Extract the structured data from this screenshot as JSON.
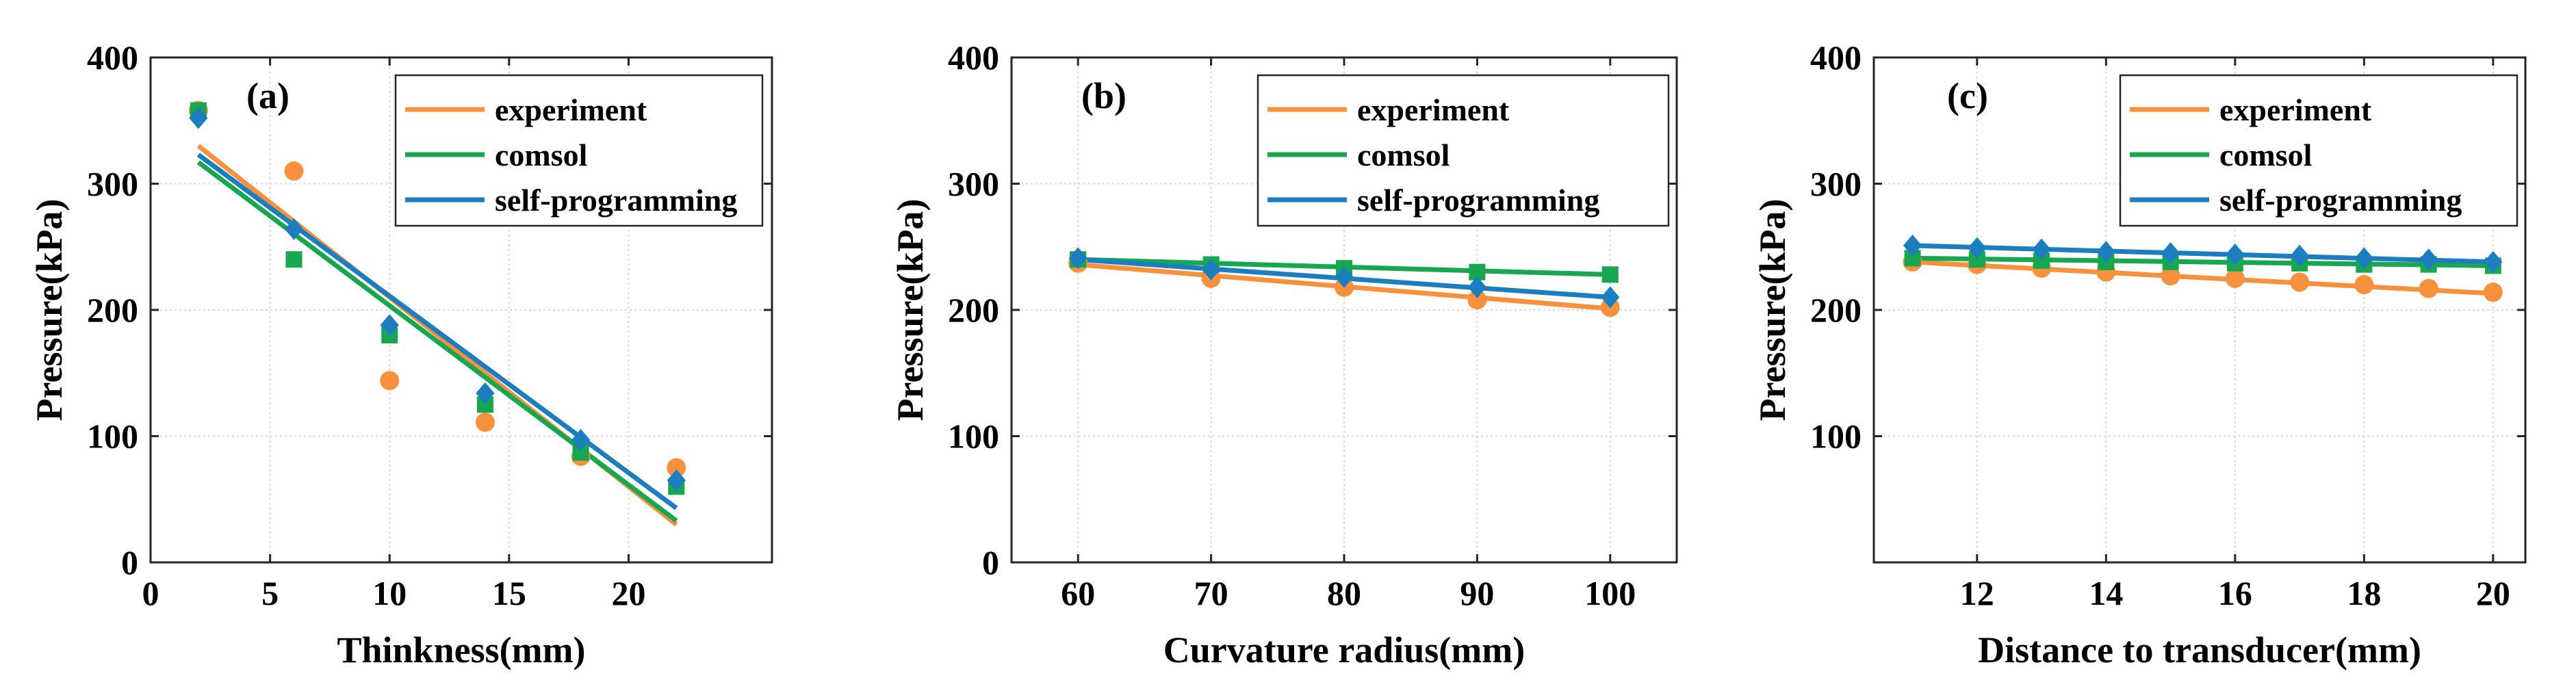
{
  "chart_data": [
    {
      "type": "scatter",
      "panel_label": "(a)",
      "xlabel": "Thinkness(mm)",
      "ylabel": "Pressure(kPa)",
      "xlim": [
        0,
        26
      ],
      "ylim": [
        0,
        400
      ],
      "xticks": [
        0,
        5,
        10,
        15,
        20
      ],
      "yticks": [
        0,
        100,
        200,
        300,
        400
      ],
      "grid": true,
      "legend_position": "top-right",
      "series": [
        {
          "name": "experiment",
          "color": "#F7913D",
          "marker": "circle",
          "x": [
            2,
            6,
            10,
            14,
            18,
            22
          ],
          "y": [
            358,
            310,
            144,
            111,
            84,
            75
          ],
          "fit": [
            [
              2,
              330
            ],
            [
              22,
              30
            ]
          ]
        },
        {
          "name": "comsol",
          "color": "#18A650",
          "marker": "square",
          "x": [
            2,
            6,
            10,
            14,
            18,
            22
          ],
          "y": [
            358,
            240,
            180,
            125,
            87,
            60
          ],
          "fit": [
            [
              2,
              317
            ],
            [
              22,
              33
            ]
          ]
        },
        {
          "name": "self-programming",
          "color": "#1C7DBF",
          "marker": "diamond",
          "x": [
            2,
            6,
            10,
            14,
            18,
            22
          ],
          "y": [
            352,
            264,
            188,
            134,
            97,
            65
          ],
          "fit": [
            [
              2,
              323
            ],
            [
              22,
              43
            ]
          ]
        }
      ]
    },
    {
      "type": "scatter",
      "panel_label": "(b)",
      "xlabel": "Curvature radius(mm)",
      "ylabel": "Pressure(kPa)",
      "xlim": [
        55,
        105
      ],
      "ylim": [
        0,
        400
      ],
      "xticks": [
        60,
        70,
        80,
        90,
        100
      ],
      "yticks": [
        0,
        100,
        200,
        300,
        400
      ],
      "grid": true,
      "legend_position": "top-right",
      "series": [
        {
          "name": "experiment",
          "color": "#F7913D",
          "marker": "circle",
          "x": [
            60,
            70,
            80,
            90,
            100
          ],
          "y": [
            237,
            225,
            218,
            208,
            202
          ],
          "fit": [
            [
              60,
              236
            ],
            [
              100,
              201
            ]
          ]
        },
        {
          "name": "comsol",
          "color": "#18A650",
          "marker": "square",
          "x": [
            60,
            70,
            80,
            90,
            100
          ],
          "y": [
            240,
            236,
            233,
            230,
            228
          ],
          "fit": [
            [
              60,
              240
            ],
            [
              100,
              228
            ]
          ]
        },
        {
          "name": "self-programming",
          "color": "#1C7DBF",
          "marker": "diamond",
          "x": [
            60,
            70,
            80,
            90,
            100
          ],
          "y": [
            241,
            232,
            226,
            218,
            210
          ],
          "fit": [
            [
              60,
              240
            ],
            [
              100,
              210
            ]
          ]
        }
      ]
    },
    {
      "type": "scatter",
      "panel_label": "(c)",
      "xlabel": "Distance to transducer(mm)",
      "ylabel": "Pressure(kPa)",
      "xlim": [
        10.4,
        20.5
      ],
      "ylim": [
        0,
        400
      ],
      "xticks": [
        12,
        14,
        16,
        18,
        20
      ],
      "yticks": [
        100,
        200,
        300,
        400
      ],
      "grid": true,
      "legend_position": "top-right",
      "series": [
        {
          "name": "experiment",
          "color": "#F7913D",
          "marker": "circle",
          "x": [
            11,
            12,
            13,
            14,
            15,
            16,
            17,
            18,
            19,
            20
          ],
          "y": [
            238,
            236,
            233,
            230,
            227,
            225,
            222,
            220,
            217,
            214
          ],
          "fit": [
            [
              11,
              238
            ],
            [
              20,
              213
            ]
          ]
        },
        {
          "name": "comsol",
          "color": "#18A650",
          "marker": "square",
          "x": [
            11,
            12,
            13,
            14,
            15,
            16,
            17,
            18,
            19,
            20
          ],
          "y": [
            241,
            240,
            239,
            238,
            238,
            237,
            237,
            236,
            236,
            235
          ],
          "fit": [
            [
              11,
              241
            ],
            [
              20,
              235
            ]
          ]
        },
        {
          "name": "self-programming",
          "color": "#1C7DBF",
          "marker": "diamond",
          "x": [
            11,
            12,
            13,
            14,
            15,
            16,
            17,
            18,
            19,
            20
          ],
          "y": [
            251,
            249,
            248,
            246,
            245,
            244,
            243,
            241,
            240,
            238
          ],
          "fit": [
            [
              11,
              251
            ],
            [
              20,
              238
            ]
          ]
        }
      ]
    }
  ]
}
